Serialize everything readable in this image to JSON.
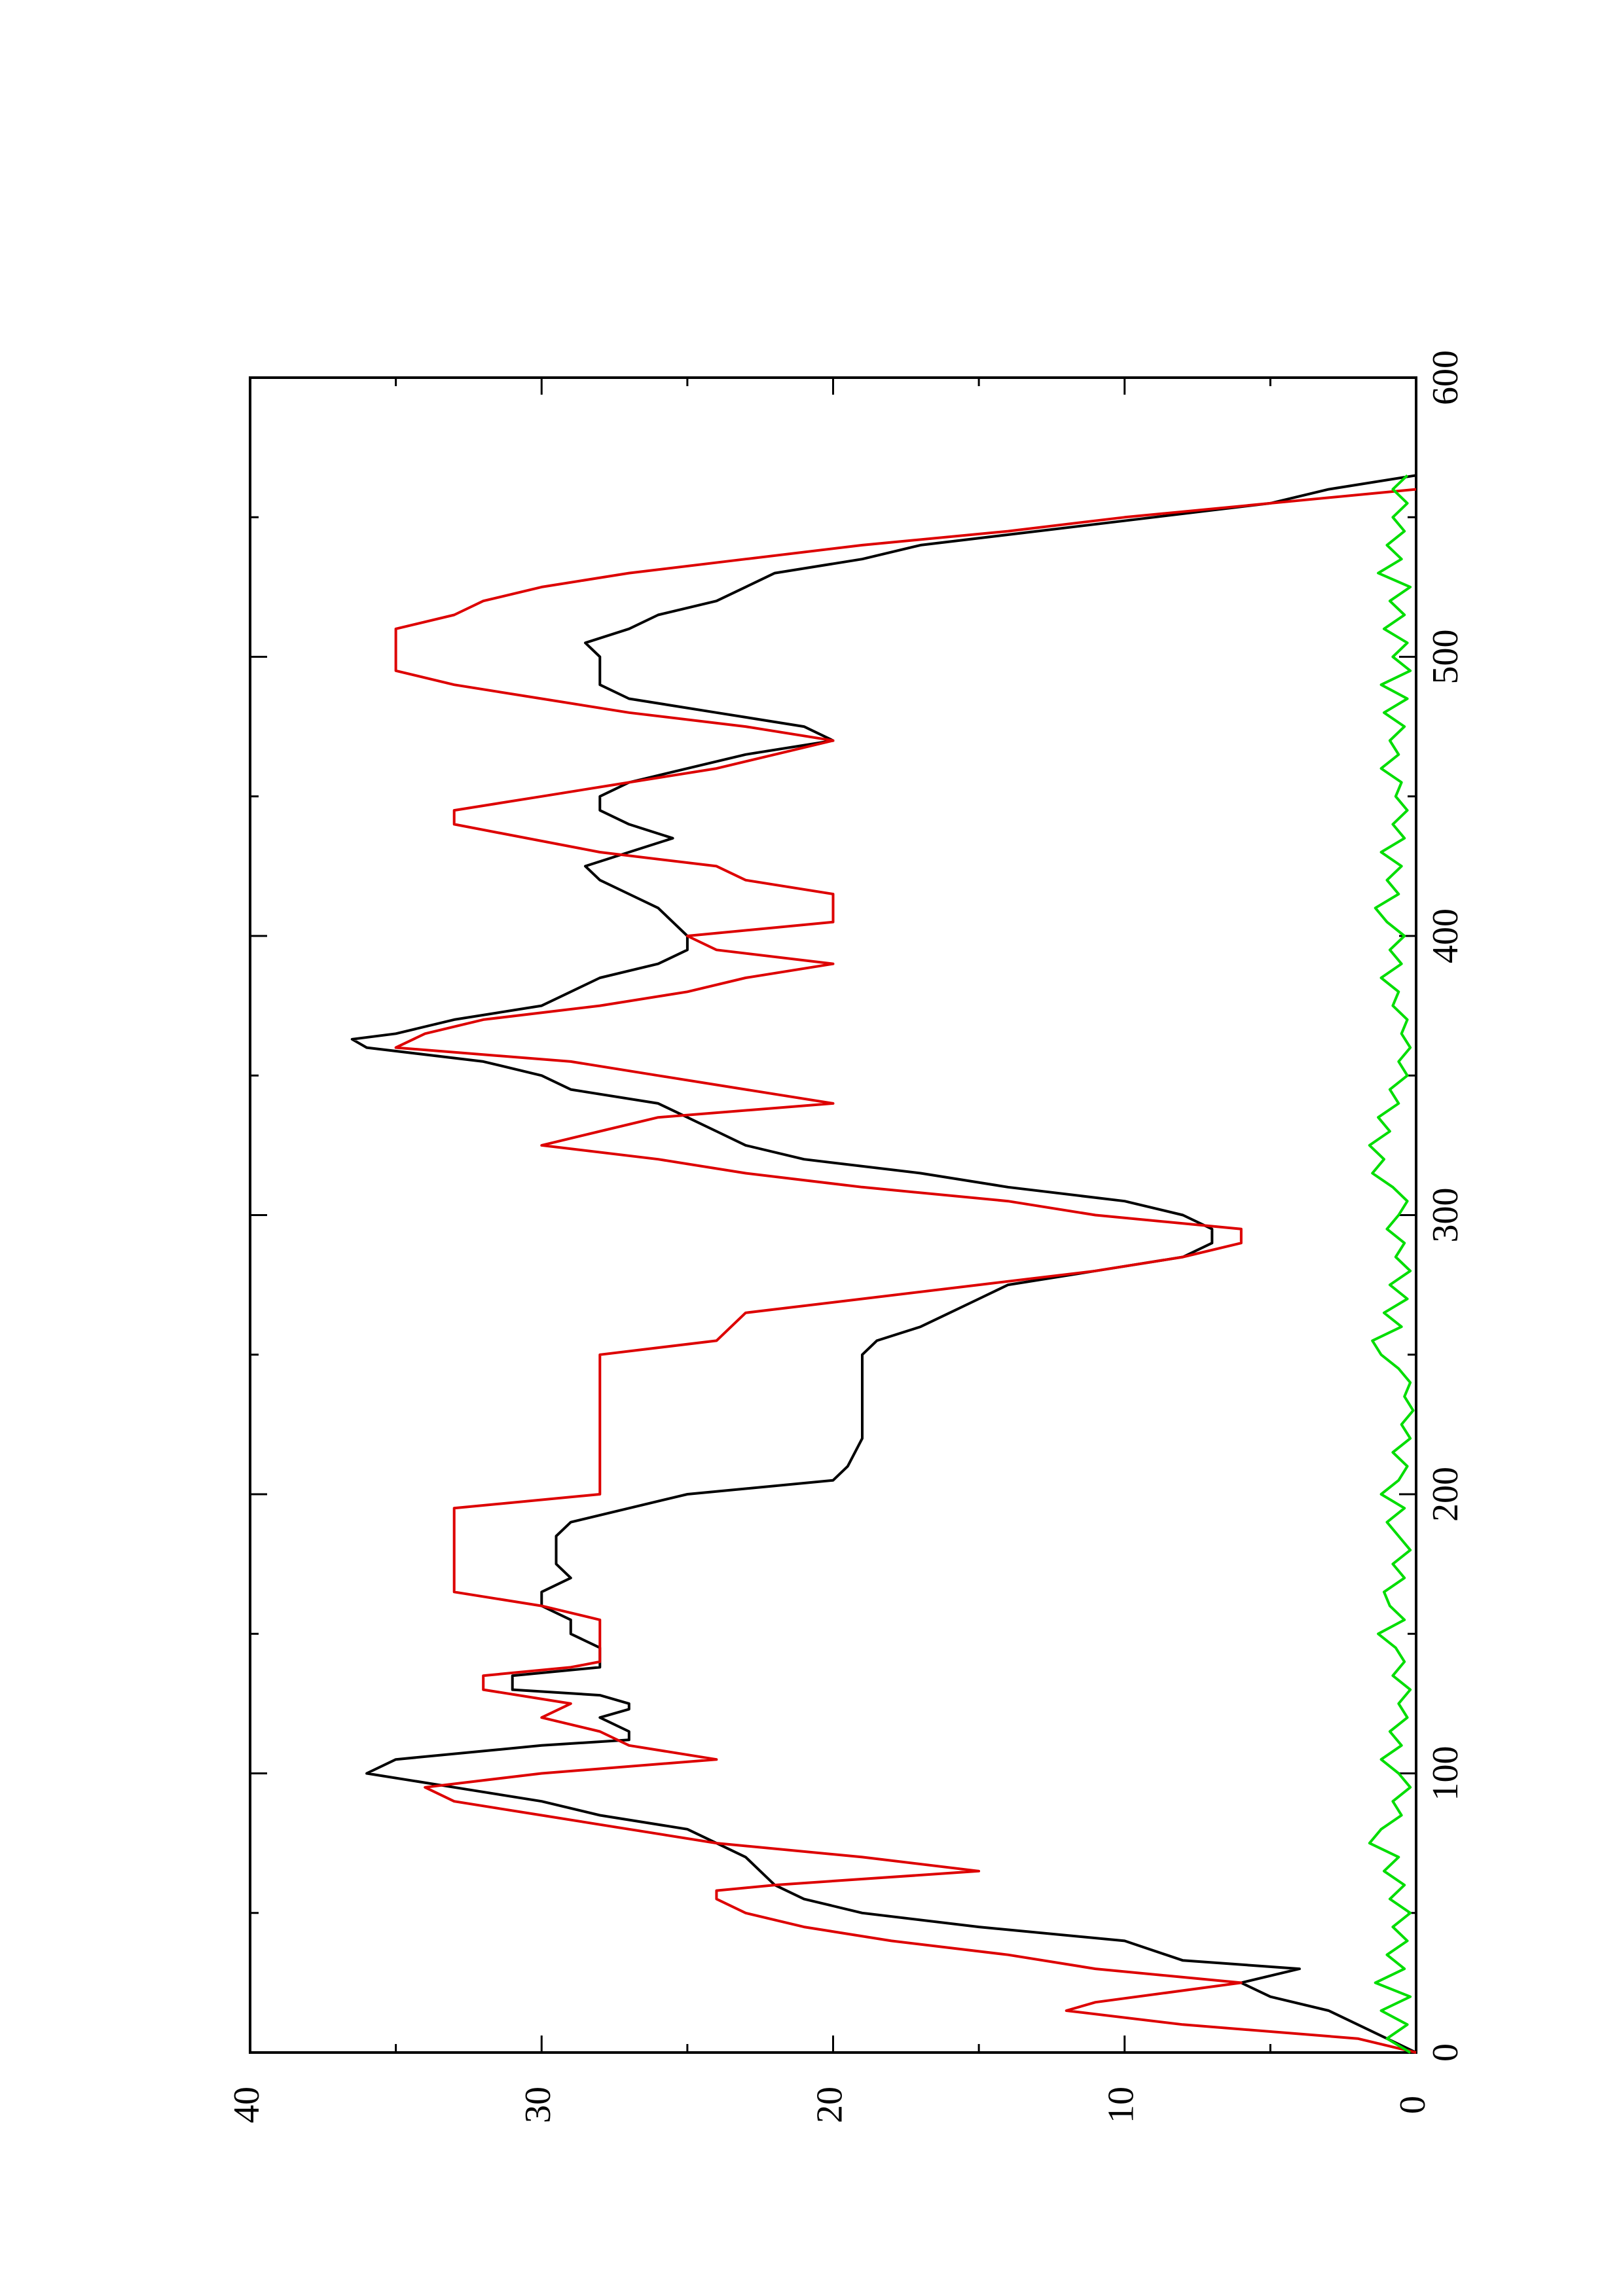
{
  "chart_data": {
    "type": "line",
    "title": "",
    "xlabel": "",
    "ylabel": "",
    "xlim": [
      0,
      600
    ],
    "ylim": [
      0,
      40
    ],
    "x_major_ticks": [
      0,
      100,
      200,
      300,
      400,
      500,
      600
    ],
    "x_minor_ticks": [
      50,
      150,
      250,
      350,
      450,
      550
    ],
    "y_major_ticks": [
      0,
      10,
      20,
      30,
      40
    ],
    "y_minor_ticks": [
      5,
      15,
      25,
      35
    ],
    "x_tick_labels": [
      "0",
      "100",
      "200",
      "300",
      "400",
      "500",
      "600"
    ],
    "y_tick_labels": [
      "0",
      "10",
      "20",
      "30",
      "40"
    ],
    "grid": false,
    "orientation": "rotated 90 degrees counter-clockwise",
    "series": [
      {
        "color": "#000000",
        "style": "line",
        "points": [
          [
            0,
            0
          ],
          [
            5,
            1
          ],
          [
            10,
            2
          ],
          [
            15,
            3
          ],
          [
            20,
            5
          ],
          [
            25,
            6
          ],
          [
            30,
            4
          ],
          [
            33,
            8
          ],
          [
            40,
            10
          ],
          [
            45,
            15
          ],
          [
            50,
            19
          ],
          [
            55,
            21
          ],
          [
            60,
            22
          ],
          [
            65,
            22.5
          ],
          [
            70,
            23
          ],
          [
            75,
            24
          ],
          [
            80,
            25
          ],
          [
            85,
            28
          ],
          [
            90,
            30
          ],
          [
            95,
            33
          ],
          [
            100,
            36
          ],
          [
            105,
            35
          ],
          [
            108,
            32
          ],
          [
            110,
            30
          ],
          [
            112,
            27
          ],
          [
            115,
            27
          ],
          [
            120,
            28
          ],
          [
            123,
            27
          ],
          [
            125,
            27
          ],
          [
            128,
            28
          ],
          [
            130,
            31
          ],
          [
            135,
            31
          ],
          [
            138,
            28
          ],
          [
            140,
            28
          ],
          [
            145,
            28
          ],
          [
            150,
            29
          ],
          [
            155,
            29
          ],
          [
            160,
            30
          ],
          [
            165,
            30
          ],
          [
            170,
            29
          ],
          [
            175,
            29.5
          ],
          [
            180,
            29.5
          ],
          [
            185,
            29.5
          ],
          [
            190,
            29
          ],
          [
            195,
            27
          ],
          [
            200,
            25
          ],
          [
            205,
            20
          ],
          [
            210,
            19.5
          ],
          [
            220,
            19
          ],
          [
            230,
            19
          ],
          [
            240,
            19
          ],
          [
            245,
            19
          ],
          [
            250,
            19
          ],
          [
            255,
            18.5
          ],
          [
            260,
            17
          ],
          [
            265,
            16
          ],
          [
            270,
            15
          ],
          [
            275,
            14
          ],
          [
            280,
            11
          ],
          [
            285,
            8
          ],
          [
            290,
            7
          ],
          [
            295,
            7
          ],
          [
            300,
            8
          ],
          [
            305,
            10
          ],
          [
            310,
            14
          ],
          [
            315,
            17
          ],
          [
            320,
            21
          ],
          [
            325,
            23
          ],
          [
            330,
            24
          ],
          [
            335,
            25
          ],
          [
            340,
            26
          ],
          [
            345,
            29
          ],
          [
            350,
            30
          ],
          [
            355,
            32
          ],
          [
            360,
            36
          ],
          [
            363,
            36.5
          ],
          [
            365,
            35
          ],
          [
            370,
            33
          ],
          [
            375,
            30
          ],
          [
            380,
            29
          ],
          [
            385,
            28
          ],
          [
            390,
            26
          ],
          [
            395,
            25
          ],
          [
            400,
            25
          ],
          [
            405,
            25.5
          ],
          [
            410,
            26
          ],
          [
            415,
            27
          ],
          [
            420,
            28
          ],
          [
            425,
            28.5
          ],
          [
            430,
            27
          ],
          [
            435,
            25.5
          ],
          [
            440,
            27
          ],
          [
            445,
            28
          ],
          [
            450,
            28
          ],
          [
            455,
            27
          ],
          [
            460,
            25
          ],
          [
            465,
            23
          ],
          [
            470,
            20
          ],
          [
            475,
            21
          ],
          [
            480,
            24
          ],
          [
            485,
            27
          ],
          [
            490,
            28
          ],
          [
            495,
            28
          ],
          [
            500,
            28
          ],
          [
            505,
            28.5
          ],
          [
            510,
            27
          ],
          [
            515,
            26
          ],
          [
            520,
            24
          ],
          [
            525,
            23
          ],
          [
            530,
            22
          ],
          [
            535,
            19
          ],
          [
            540,
            17
          ],
          [
            545,
            13
          ],
          [
            550,
            9
          ],
          [
            555,
            5
          ],
          [
            560,
            3
          ],
          [
            565,
            0
          ]
        ]
      },
      {
        "color": "#dd0000",
        "style": "line",
        "points": [
          [
            0,
            0
          ],
          [
            5,
            2
          ],
          [
            10,
            8
          ],
          [
            15,
            12
          ],
          [
            18,
            11
          ],
          [
            25,
            6
          ],
          [
            30,
            11
          ],
          [
            35,
            14
          ],
          [
            40,
            18
          ],
          [
            45,
            21
          ],
          [
            50,
            23
          ],
          [
            55,
            24
          ],
          [
            58,
            24
          ],
          [
            60,
            22
          ],
          [
            65,
            15
          ],
          [
            70,
            19
          ],
          [
            75,
            24
          ],
          [
            80,
            27
          ],
          [
            85,
            30
          ],
          [
            90,
            33
          ],
          [
            95,
            34
          ],
          [
            100,
            30
          ],
          [
            105,
            24
          ],
          [
            110,
            27
          ],
          [
            115,
            28
          ],
          [
            120,
            30
          ],
          [
            125,
            29
          ],
          [
            130,
            32
          ],
          [
            135,
            32
          ],
          [
            138,
            29
          ],
          [
            140,
            28
          ],
          [
            145,
            28
          ],
          [
            155,
            28
          ],
          [
            160,
            30
          ],
          [
            165,
            33
          ],
          [
            195,
            33
          ],
          [
            200,
            28
          ],
          [
            250,
            28
          ],
          [
            255,
            24
          ],
          [
            265,
            23
          ],
          [
            270,
            19
          ],
          [
            275,
            15
          ],
          [
            280,
            11
          ],
          [
            285,
            8
          ],
          [
            290,
            6
          ],
          [
            295,
            6
          ],
          [
            300,
            11
          ],
          [
            305,
            14
          ],
          [
            310,
            19
          ],
          [
            315,
            23
          ],
          [
            320,
            26
          ],
          [
            325,
            30
          ],
          [
            330,
            28
          ],
          [
            335,
            26
          ],
          [
            340,
            20
          ],
          [
            345,
            23
          ],
          [
            350,
            26
          ],
          [
            355,
            29
          ],
          [
            360,
            35
          ],
          [
            365,
            34
          ],
          [
            370,
            32
          ],
          [
            375,
            28
          ],
          [
            380,
            25
          ],
          [
            385,
            23
          ],
          [
            390,
            20
          ],
          [
            395,
            24
          ],
          [
            400,
            25
          ],
          [
            405,
            20
          ],
          [
            410,
            20
          ],
          [
            415,
            20
          ],
          [
            420,
            23
          ],
          [
            425,
            24
          ],
          [
            430,
            28
          ],
          [
            440,
            33
          ],
          [
            445,
            33
          ],
          [
            450,
            30
          ],
          [
            455,
            27
          ],
          [
            460,
            24
          ],
          [
            465,
            22
          ],
          [
            470,
            20
          ],
          [
            475,
            23
          ],
          [
            480,
            27
          ],
          [
            485,
            30
          ],
          [
            490,
            33
          ],
          [
            495,
            35
          ],
          [
            510,
            35
          ],
          [
            515,
            33
          ],
          [
            520,
            32
          ],
          [
            525,
            30
          ],
          [
            530,
            27
          ],
          [
            535,
            23
          ],
          [
            540,
            19
          ],
          [
            545,
            14
          ],
          [
            550,
            10
          ],
          [
            555,
            5
          ],
          [
            560,
            0
          ]
        ]
      },
      {
        "color": "#00dd00",
        "style": "line",
        "points": [
          [
            0,
            0.2
          ],
          [
            5,
            1
          ],
          [
            10,
            0.3
          ],
          [
            15,
            1.2
          ],
          [
            20,
            0.2
          ],
          [
            25,
            1.4
          ],
          [
            30,
            0.4
          ],
          [
            35,
            1
          ],
          [
            40,
            0.3
          ],
          [
            45,
            0.8
          ],
          [
            50,
            0.2
          ],
          [
            55,
            0.9
          ],
          [
            60,
            0.4
          ],
          [
            65,
            1.1
          ],
          [
            70,
            0.6
          ],
          [
            75,
            1.6
          ],
          [
            80,
            1.2
          ],
          [
            85,
            0.5
          ],
          [
            90,
            0.8
          ],
          [
            95,
            0.2
          ],
          [
            100,
            0.6
          ],
          [
            105,
            1.2
          ],
          [
            110,
            0.5
          ],
          [
            115,
            0.9
          ],
          [
            120,
            0.3
          ],
          [
            125,
            0.6
          ],
          [
            130,
            0.2
          ],
          [
            135,
            0.8
          ],
          [
            140,
            0.4
          ],
          [
            145,
            0.7
          ],
          [
            150,
            1.3
          ],
          [
            155,
            0.4
          ],
          [
            160,
            0.9
          ],
          [
            165,
            1.1
          ],
          [
            170,
            0.4
          ],
          [
            175,
            0.8
          ],
          [
            180,
            0.2
          ],
          [
            185,
            0.6
          ],
          [
            190,
            1
          ],
          [
            195,
            0.4
          ],
          [
            200,
            1.2
          ],
          [
            205,
            0.6
          ],
          [
            210,
            0.3
          ],
          [
            215,
            0.8
          ],
          [
            220,
            0.2
          ],
          [
            225,
            0.5
          ],
          [
            230,
            0.1
          ],
          [
            235,
            0.4
          ],
          [
            240,
            0.2
          ],
          [
            245,
            0.6
          ],
          [
            250,
            1.2
          ],
          [
            255,
            1.5
          ],
          [
            260,
            0.5
          ],
          [
            265,
            1.1
          ],
          [
            270,
            0.3
          ],
          [
            275,
            0.9
          ],
          [
            280,
            0.2
          ],
          [
            285,
            0.7
          ],
          [
            290,
            0.4
          ],
          [
            295,
            1
          ],
          [
            300,
            0.6
          ],
          [
            305,
            0.3
          ],
          [
            310,
            0.8
          ],
          [
            315,
            1.5
          ],
          [
            320,
            1.1
          ],
          [
            325,
            1.6
          ],
          [
            330,
            0.9
          ],
          [
            335,
            1.3
          ],
          [
            340,
            0.6
          ],
          [
            345,
            0.9
          ],
          [
            350,
            0.3
          ],
          [
            355,
            0.6
          ],
          [
            360,
            0.2
          ],
          [
            365,
            0.5
          ],
          [
            370,
            0.3
          ],
          [
            375,
            0.8
          ],
          [
            380,
            0.6
          ],
          [
            385,
            1.2
          ],
          [
            390,
            0.5
          ],
          [
            395,
            0.9
          ],
          [
            400,
            0.4
          ],
          [
            405,
            1
          ],
          [
            410,
            1.4
          ],
          [
            415,
            0.6
          ],
          [
            420,
            1
          ],
          [
            425,
            0.5
          ],
          [
            430,
            1.2
          ],
          [
            435,
            0.4
          ],
          [
            440,
            0.8
          ],
          [
            445,
            0.3
          ],
          [
            450,
            0.7
          ],
          [
            455,
            0.5
          ],
          [
            460,
            1.2
          ],
          [
            465,
            0.6
          ],
          [
            470,
            0.9
          ],
          [
            475,
            0.4
          ],
          [
            480,
            1.1
          ],
          [
            485,
            0.3
          ],
          [
            490,
            1.2
          ],
          [
            495,
            0.2
          ],
          [
            500,
            0.8
          ],
          [
            505,
            0.3
          ],
          [
            510,
            1.1
          ],
          [
            515,
            0.4
          ],
          [
            520,
            0.9
          ],
          [
            525,
            0.2
          ],
          [
            530,
            1.3
          ],
          [
            535,
            0.5
          ],
          [
            540,
            1
          ],
          [
            545,
            0.4
          ],
          [
            550,
            0.8
          ],
          [
            555,
            0.3
          ],
          [
            560,
            0.8
          ],
          [
            565,
            0.3
          ]
        ]
      }
    ]
  }
}
